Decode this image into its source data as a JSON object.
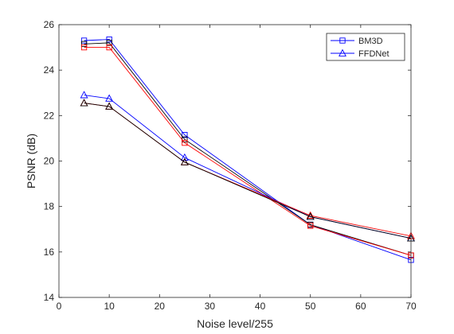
{
  "chart_data": {
    "type": "line",
    "xlabel": "Noise level/255",
    "ylabel": "PSNR (dB)",
    "xlim": [
      0,
      70
    ],
    "ylim": [
      14,
      26
    ],
    "xticks": [
      0,
      10,
      20,
      30,
      40,
      50,
      60,
      70
    ],
    "yticks": [
      14,
      16,
      18,
      20,
      22,
      24,
      26
    ],
    "x": [
      5,
      10,
      25,
      50,
      70
    ],
    "grid": false,
    "legend_position": "top-right",
    "legend": [
      {
        "label": "BM3D",
        "color": "#0000ff",
        "marker": "square"
      },
      {
        "label": "FFDNet",
        "color": "#0000ff",
        "marker": "triangle"
      }
    ],
    "series": [
      {
        "color": "#0000ff",
        "marker": "square",
        "values": [
          25.3,
          25.35,
          21.15,
          17.2,
          15.65
        ]
      },
      {
        "color": "#000000",
        "marker": "square",
        "values": [
          25.15,
          25.2,
          20.95,
          17.2,
          15.85
        ]
      },
      {
        "color": "#ff0000",
        "marker": "square",
        "values": [
          25.0,
          25.0,
          20.8,
          17.15,
          15.85
        ]
      },
      {
        "color": "#0000ff",
        "marker": "triangle",
        "values": [
          22.9,
          22.75,
          20.15,
          17.55,
          16.6
        ]
      },
      {
        "color": "#ff0000",
        "marker": "triangle",
        "values": [
          22.55,
          22.4,
          19.95,
          17.6,
          16.7
        ]
      },
      {
        "color": "#000000",
        "marker": "triangle",
        "values": [
          22.55,
          22.4,
          19.95,
          17.55,
          16.6
        ]
      }
    ]
  }
}
